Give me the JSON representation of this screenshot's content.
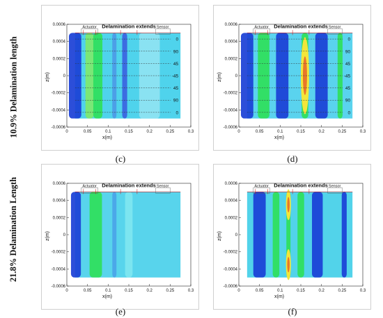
{
  "row_labels": [
    "10.9% Delamination length",
    "21.8% Delamination Length"
  ],
  "chart_data": [
    {
      "type": "heatmap",
      "id": "c",
      "caption": "(c)",
      "xlabel": "x(m)",
      "ylabel": "z(m)",
      "xlim": [
        0,
        0.3
      ],
      "ylim": [
        -0.0006,
        0.0006
      ],
      "x_ticks": [
        "0",
        "0.05",
        "0.1",
        "0.15",
        "0.2",
        "0.25",
        "0.3"
      ],
      "y_ticks": [
        "0.0006",
        "0.0004",
        "0.0002",
        "0",
        "-0.0002",
        "-0.0004",
        "-0.0006"
      ],
      "annotations": {
        "actuator": "Actuator",
        "delamination": "Delamination extends",
        "sensor": "Sensor"
      },
      "ply_labels": [
        "0",
        "90",
        "45",
        "-45",
        "45",
        "90",
        "0"
      ]
    },
    {
      "type": "heatmap",
      "id": "d",
      "caption": "(d)",
      "xlabel": "x(m)",
      "ylabel": "z(m)",
      "xlim": [
        0,
        0.3
      ],
      "ylim": [
        -0.0006,
        0.0006
      ],
      "x_ticks": [
        "0",
        "0.05",
        "0.1",
        "0.15",
        "0.2",
        "0.25",
        "0.3"
      ],
      "y_ticks": [
        "0.0006",
        "0.0004",
        "0.0002",
        "0",
        "-0.0002",
        "-0.0004",
        "-0.0006"
      ],
      "annotations": {
        "actuator": "Actuator",
        "delamination": "Delamination extends",
        "sensor": "Sensor"
      },
      "ply_labels": [
        "0",
        "90",
        "45",
        "-45",
        "45",
        "90",
        "0"
      ]
    },
    {
      "type": "heatmap",
      "id": "e",
      "caption": "(e)",
      "xlabel": "x(m)",
      "ylabel": "z(m)",
      "xlim": [
        0,
        0.3
      ],
      "ylim": [
        -0.0006,
        0.0006
      ],
      "x_ticks": [
        "0",
        "0.05",
        "0.1",
        "0.15",
        "0.2",
        "0.25",
        "0.3"
      ],
      "y_ticks": [
        "0.0006",
        "0.0004",
        "0.0002",
        "0",
        "-0.0002",
        "-0.0004",
        "-0.0006"
      ],
      "annotations": {
        "actuator": "Actuator",
        "delamination": "Delamination extends",
        "sensor": "Sensor"
      }
    },
    {
      "type": "heatmap",
      "id": "f",
      "caption": "(f)",
      "xlabel": "x(m)",
      "ylabel": "z(m)",
      "xlim": [
        0,
        0.3
      ],
      "ylim": [
        -0.0006,
        0.0006
      ],
      "x_ticks": [
        "0",
        "0.05",
        "0.1",
        "0.15",
        "0.2",
        "0.25",
        "0.3"
      ],
      "y_ticks": [
        "0.0006",
        "0.0004",
        "0.0002",
        "0",
        "-0.0002",
        "-0.0004",
        "-0.0006"
      ],
      "annotations": {
        "actuator": "Actuator",
        "delamination": "Delamination extends",
        "sensor": "Sensor"
      }
    }
  ]
}
